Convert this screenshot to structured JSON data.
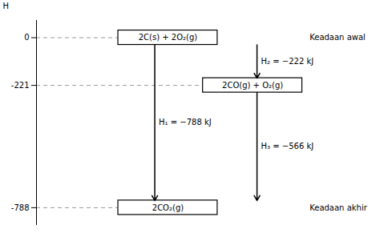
{
  "chart_data": {
    "type": "energy_level",
    "y_label": "H",
    "categories": [
      "2C(s) + 2O₂(g)",
      "2CO(g) + O₂(g)",
      "2CO₂(g)"
    ],
    "values": [
      0,
      -221,
      -788
    ],
    "ylim": [
      -870,
      80
    ],
    "yticks": [
      0,
      -221,
      -788
    ],
    "arrows": [
      {
        "from": 0,
        "to": -221,
        "label": "H₂ = −222 kJ"
      },
      {
        "from": 0,
        "to": -788,
        "label": "H₁ = −788 kJ"
      },
      {
        "from": -221,
        "to": -788,
        "label": "H₃ = −566 kJ"
      }
    ],
    "annotations": [
      {
        "text": "Keadaan awal",
        "y": 0
      },
      {
        "text": "Keadaan akhir",
        "y": -788
      }
    ]
  }
}
